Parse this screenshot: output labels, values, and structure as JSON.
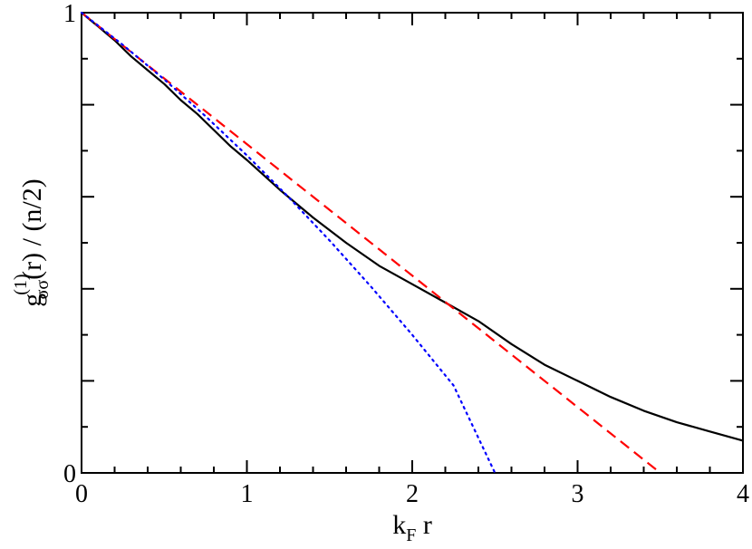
{
  "chart_data": {
    "type": "line",
    "title": "",
    "xlabel": {
      "main": "k",
      "sub": "F",
      "tail": " r"
    },
    "ylabel": {
      "main": "g",
      "sup": "(1)",
      "sub": "σσ",
      "tail": "(r) / (n/2)"
    },
    "xlim": [
      0,
      4
    ],
    "ylim": [
      0,
      1
    ],
    "x_ticks": [
      "0",
      "1",
      "2",
      "3",
      "4"
    ],
    "y_ticks": [
      "0",
      "1"
    ],
    "grid": false,
    "legend": "none",
    "series": [
      {
        "style": "solid",
        "color": "#000000",
        "x": [
          0,
          0.05,
          0.1,
          0.15,
          0.2,
          0.3,
          0.4,
          0.5,
          0.6,
          0.7,
          0.8,
          0.9,
          1.0,
          1.2,
          1.4,
          1.6,
          1.8,
          2.0,
          2.2,
          2.4,
          2.6,
          2.8,
          3.0,
          3.2,
          3.4,
          3.6,
          3.8,
          4.0
        ],
        "y": [
          1.0,
          0.985,
          0.97,
          0.955,
          0.94,
          0.905,
          0.875,
          0.845,
          0.81,
          0.78,
          0.745,
          0.71,
          0.68,
          0.615,
          0.555,
          0.5,
          0.45,
          0.41,
          0.37,
          0.33,
          0.28,
          0.235,
          0.2,
          0.165,
          0.135,
          0.11,
          0.09,
          0.07
        ]
      },
      {
        "style": "dashed",
        "color": "#ff0000",
        "x": [
          0,
          3.5
        ],
        "y": [
          1.0,
          0.0
        ]
      },
      {
        "style": "dotted",
        "color": "#0000ff",
        "x": [
          0,
          0.25,
          0.5,
          0.75,
          1.0,
          1.25,
          1.5,
          1.75,
          2.0,
          2.25,
          2.5
        ],
        "y": [
          1.0,
          0.93,
          0.855,
          0.775,
          0.69,
          0.6,
          0.505,
          0.405,
          0.3,
          0.19,
          0.0
        ]
      }
    ]
  }
}
